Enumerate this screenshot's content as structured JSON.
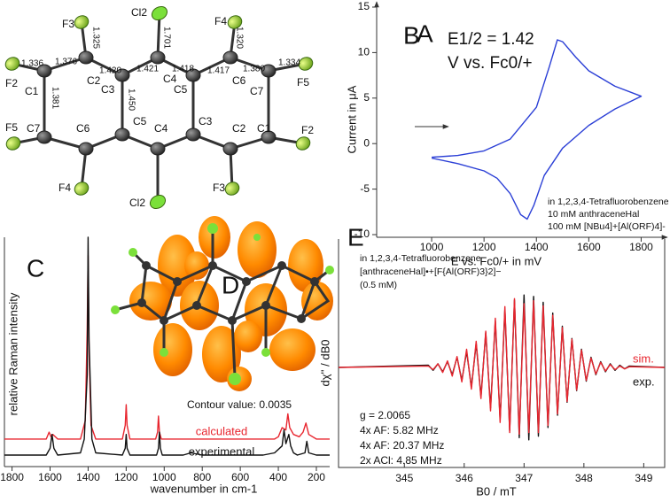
{
  "structure": {
    "panel_label": "A",
    "atom_labels": [
      "F3",
      "Cl2",
      "F4",
      "F2",
      "C1",
      "C2",
      "C3",
      "C4",
      "C5",
      "C6",
      "C7",
      "F5",
      "C7",
      "C6",
      "C5",
      "C4",
      "C3",
      "C2",
      "C1",
      "F5",
      "F2",
      "F4",
      "Cl2",
      "F3"
    ],
    "bond_labels": [
      "1.336",
      "1.376",
      "1.325",
      "1.420",
      "1.421",
      "1.701",
      "1.418",
      "1.417",
      "1.320",
      "1.380",
      "1.334",
      "1.381",
      "1.450"
    ]
  },
  "orbital": {
    "panel_label": "D",
    "caption": "Contour value: 0.0035"
  },
  "chart_data": [
    {
      "type": "line",
      "panel_label": "B",
      "x_label": "E vs. Fc0/+ in mV",
      "y_label": "Current in μA",
      "annotations": [
        "E1/2 = 1.42",
        "V vs. Fc0/+"
      ],
      "notes": [
        "in 1,2,3,4-Tetrafluorobenzene",
        "10 mM anthraceneHal",
        "100 mM [NBu4]+[Al(ORF)4]-"
      ],
      "xlim": [
        790,
        1900
      ],
      "ylim": [
        -10,
        15
      ],
      "xticks": [
        1000,
        1200,
        1400,
        1600,
        1800
      ],
      "yticks": [
        -10,
        -5,
        0,
        5,
        10,
        15
      ],
      "series": [
        {
          "color": "#2b3fd6",
          "x": [
            1000,
            1100,
            1200,
            1300,
            1400,
            1450,
            1480,
            1500,
            1550,
            1600,
            1700,
            1800,
            1700,
            1600,
            1500,
            1430,
            1390,
            1365,
            1340,
            1300,
            1250,
            1200,
            1100,
            1000
          ],
          "values": [
            -1.5,
            -1.3,
            -0.8,
            0.5,
            4,
            8.5,
            11.4,
            11.2,
            9.5,
            8,
            6.3,
            5.2,
            3.8,
            2,
            -0.5,
            -3.5,
            -6.8,
            -8.3,
            -7.8,
            -5.5,
            -3.8,
            -3,
            -2.2,
            -1.6
          ]
        }
      ]
    },
    {
      "type": "line",
      "panel_label": "C",
      "x_label": "wavenumber in cm-1",
      "y_label": "relative Raman intensity",
      "xlim": [
        1840,
        130
      ],
      "ylim": [
        0,
        100
      ],
      "xticks": [
        1800,
        1600,
        1400,
        1200,
        1000,
        800,
        600,
        400,
        200
      ],
      "series": [
        {
          "name": "calculated",
          "color": "#e8262f",
          "x": [
            1840,
            1620,
            1605,
            1595,
            1585,
            1560,
            1440,
            1415,
            1405,
            1400,
            1395,
            1385,
            1360,
            1220,
            1205,
            1200,
            1195,
            1180,
            1045,
            1035,
            1030,
            1025,
            1015,
            900,
            600,
            480,
            420,
            400,
            380,
            360,
            350,
            340,
            320,
            290,
            270,
            255,
            240,
            200,
            130
          ],
          "values": [
            12,
            12,
            15,
            13,
            14,
            12,
            12,
            20,
            60,
            92,
            50,
            18,
            12,
            12,
            18,
            27,
            18,
            12,
            12,
            15,
            22,
            15,
            12,
            12,
            12,
            12,
            12,
            13,
            17,
            16,
            23,
            17,
            14,
            13,
            15,
            19,
            14,
            12,
            12
          ]
        },
        {
          "name": "experimental",
          "color": "#111111",
          "x": [
            1840,
            1620,
            1600,
            1590,
            1580,
            1560,
            1440,
            1420,
            1405,
            1400,
            1395,
            1380,
            1360,
            1220,
            1205,
            1200,
            1195,
            1180,
            1040,
            1030,
            1025,
            1020,
            1010,
            900,
            860,
            800,
            480,
            420,
            380,
            370,
            360,
            345,
            335,
            320,
            300,
            260,
            250,
            240,
            200,
            130
          ],
          "values": [
            5,
            5,
            8,
            14,
            8,
            5,
            6,
            12,
            40,
            100,
            55,
            12,
            6,
            5,
            8,
            14,
            8,
            5,
            5,
            8,
            15,
            8,
            5,
            5,
            6,
            5,
            5,
            6,
            9,
            16,
            10,
            14,
            9,
            6,
            5,
            6,
            11,
            6,
            5,
            5
          ]
        }
      ]
    },
    {
      "type": "line",
      "panel_label": "E",
      "x_label": "B0 / mT",
      "y_label": "dχ'' / dB0",
      "notes": [
        "in 1,2,3,4-Tetrafluorobenzene",
        "[anthraceneHal]•+[F{Al(ORF)3}2]−",
        "(0.5 mM)"
      ],
      "parameters": [
        "g = 2.0065",
        "4x AF: 5.82 MHz",
        "4x AF: 20.37 MHz",
        "2x ACl: 4.85 MHz"
      ],
      "xlim": [
        343.9,
        349.35
      ],
      "ylim": [
        -1.1,
        1.1
      ],
      "xticks": [
        345,
        346,
        347,
        348,
        349
      ],
      "series": [
        {
          "name": "exp.",
          "color": "#111111",
          "x": [
            343.9,
            345.4,
            345.48,
            345.56,
            345.64,
            345.72,
            345.8,
            345.88,
            345.96,
            346.04,
            346.12,
            346.2,
            346.28,
            346.36,
            346.44,
            346.52,
            346.6,
            346.68,
            346.76,
            346.84,
            346.92,
            347.0,
            347.08,
            347.16,
            347.24,
            347.32,
            347.4,
            347.48,
            347.56,
            347.64,
            347.72,
            347.8,
            347.88,
            347.96,
            348.04,
            348.12,
            348.2,
            348.28,
            348.36,
            348.44,
            348.52,
            348.6,
            348.68,
            348.76,
            349.35
          ],
          "values": [
            0,
            0.03,
            -0.04,
            0.05,
            -0.06,
            0.08,
            -0.1,
            0.14,
            -0.18,
            0.22,
            -0.27,
            0.33,
            -0.4,
            0.48,
            -0.56,
            0.64,
            -0.72,
            0.8,
            -0.87,
            0.93,
            -0.97,
            1.0,
            -1.0,
            0.98,
            -0.95,
            0.9,
            -0.83,
            0.75,
            -0.66,
            0.57,
            -0.48,
            0.4,
            -0.32,
            0.25,
            -0.19,
            0.14,
            -0.1,
            0.08,
            -0.06,
            0.05,
            -0.04,
            0.03,
            -0.02,
            0.02,
            0
          ]
        },
        {
          "name": "sim.",
          "color": "#e8262f",
          "x": [
            343.9,
            345.4,
            345.48,
            345.56,
            345.64,
            345.72,
            345.8,
            345.88,
            345.96,
            346.04,
            346.12,
            346.2,
            346.28,
            346.36,
            346.44,
            346.52,
            346.6,
            346.68,
            346.76,
            346.84,
            346.92,
            347.0,
            347.08,
            347.16,
            347.24,
            347.32,
            347.4,
            347.48,
            347.56,
            347.64,
            347.72,
            347.8,
            347.88,
            347.96,
            348.04,
            348.12,
            348.2,
            348.28,
            348.36,
            348.44,
            348.52,
            348.6,
            348.68,
            348.76,
            349.35
          ],
          "values": [
            0,
            0.02,
            -0.03,
            0.05,
            -0.07,
            0.09,
            -0.12,
            0.15,
            -0.2,
            0.25,
            -0.3,
            0.36,
            -0.43,
            0.5,
            -0.6,
            0.68,
            -0.76,
            0.84,
            -0.9,
            0.95,
            -0.92,
            0.88,
            -0.9,
            0.92,
            -0.9,
            0.85,
            -0.8,
            0.72,
            -0.64,
            0.55,
            -0.47,
            0.39,
            -0.31,
            0.24,
            -0.18,
            0.13,
            -0.09,
            0.07,
            -0.05,
            0.04,
            -0.03,
            0.02,
            -0.02,
            0.01,
            0
          ]
        }
      ]
    }
  ]
}
